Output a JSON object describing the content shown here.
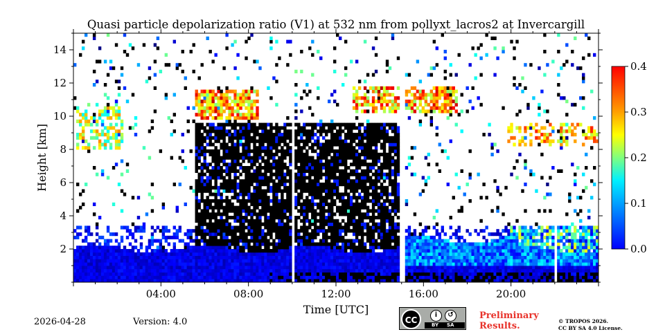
{
  "chart_data": {
    "type": "heatmap",
    "title": "Quasi particle depolarization ratio (V1) at 532 nm from pollyxt_lacros2 at Invercargill",
    "xlabel": "Time [UTC]",
    "ylabel": "Height [km]",
    "xlim_hours": [
      0,
      24
    ],
    "ylim_km": [
      0,
      15
    ],
    "x_ticks": [
      {
        "hour": 4,
        "label": "04:00"
      },
      {
        "hour": 8,
        "label": "08:00"
      },
      {
        "hour": 12,
        "label": "12:00"
      },
      {
        "hour": 16,
        "label": "16:00"
      },
      {
        "hour": 20,
        "label": "20:00"
      }
    ],
    "y_ticks": [
      {
        "value": 2,
        "label": "2"
      },
      {
        "value": 4,
        "label": "4"
      },
      {
        "value": 6,
        "label": "6"
      },
      {
        "value": 8,
        "label": "8"
      },
      {
        "value": 10,
        "label": "10"
      },
      {
        "value": 12,
        "label": "12"
      },
      {
        "value": 14,
        "label": "14"
      }
    ],
    "colorbar": {
      "range": [
        0.0,
        0.4
      ],
      "ticks": [
        "0.0",
        "0.1",
        "0.2",
        "0.3",
        "0.4"
      ],
      "colormap": "jet"
    },
    "data_gaps_hours": [
      10.05,
      15.05,
      22.05
    ],
    "regions": [
      {
        "name": "boundary layer",
        "t_start": 0,
        "t_end": 24,
        "h_bottom_km": 0,
        "h_top_km": 2.0,
        "approx_value": 0.03
      },
      {
        "name": "low-signal (black) region",
        "t_start": 5.5,
        "t_end": 15.0,
        "h_bottom_km": 1.5,
        "h_top_km": 9.5,
        "approx_value": null
      },
      {
        "name": "cirrus cloud 1",
        "t_start": 5.6,
        "t_end": 8.5,
        "h_bottom_km": 9.8,
        "h_top_km": 11.6,
        "approx_value": 0.3
      },
      {
        "name": "cirrus cloud 2",
        "t_start": 12.8,
        "t_end": 17.5,
        "h_bottom_km": 10.3,
        "h_top_km": 11.8,
        "approx_value": 0.3
      },
      {
        "name": "elevated aerosol layer",
        "t_start": 0.1,
        "t_end": 2.3,
        "h_bottom_km": 8.0,
        "h_top_km": 10.5,
        "approx_value": 0.25
      },
      {
        "name": "late cirrus layer",
        "t_start": 19.8,
        "t_end": 24,
        "h_bottom_km": 8.2,
        "h_top_km": 9.7,
        "approx_value": 0.28
      },
      {
        "name": "evening aerosol layer",
        "t_start": 20.0,
        "t_end": 24,
        "h_bottom_km": 1.5,
        "h_top_km": 3.4,
        "approx_value": 0.15
      }
    ]
  },
  "footer": {
    "date": "2026-04-28",
    "version": "Version: 4.0",
    "license_badge": {
      "left": "CC",
      "by": "BY",
      "sa": "SA"
    },
    "preliminary": [
      "Preliminary",
      "Results."
    ],
    "copyright": [
      "© TROPOS 2026.",
      "CC BY SA 4.0 License."
    ]
  },
  "colors": {
    "jet_stops": [
      "#00007f",
      "#0000ff",
      "#007fff",
      "#00ffff",
      "#7fff7f",
      "#ffff00",
      "#ff7f00",
      "#ff0000",
      "#7f0000"
    ],
    "low_signal": "#000000",
    "prelim_text": "#e8322a"
  }
}
